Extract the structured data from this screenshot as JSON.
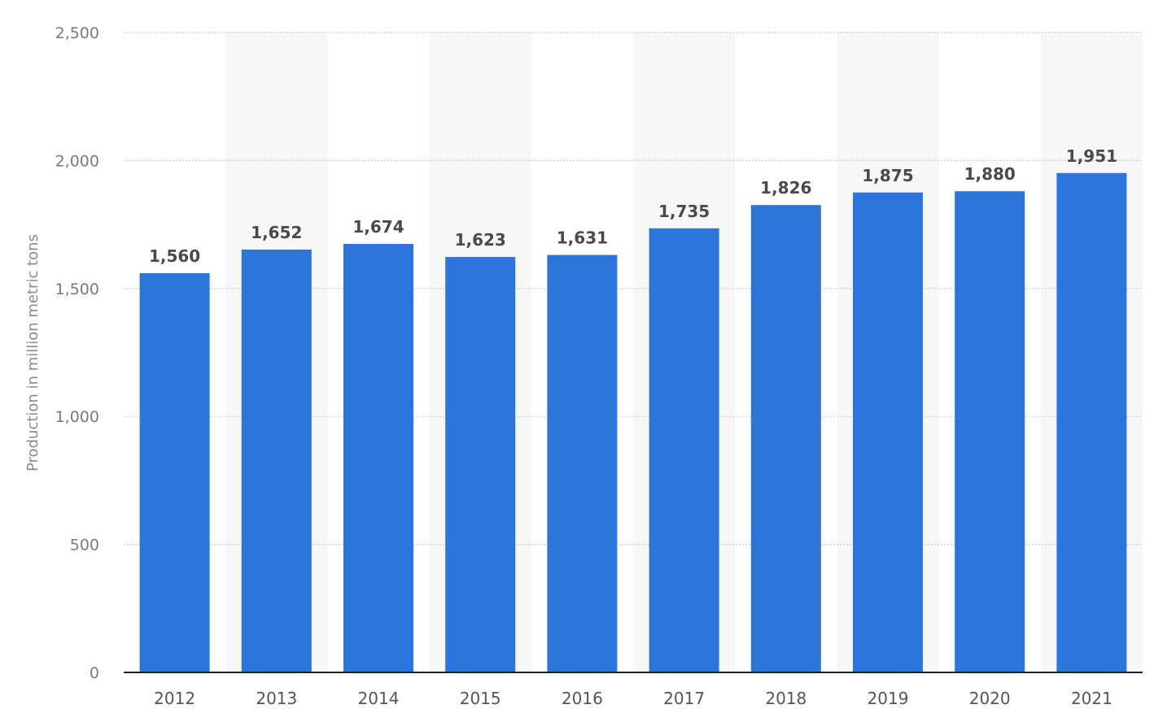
{
  "chart_data": {
    "type": "bar",
    "categories": [
      "2012",
      "2013",
      "2014",
      "2015",
      "2016",
      "2017",
      "2018",
      "2019",
      "2020",
      "2021"
    ],
    "values": [
      1560,
      1652,
      1674,
      1623,
      1631,
      1735,
      1826,
      1875,
      1880,
      1951
    ],
    "data_labels": [
      "1,560",
      "1,652",
      "1,674",
      "1,623",
      "1,631",
      "1,735",
      "1,826",
      "1,875",
      "1,880",
      "1,951"
    ],
    "title": "",
    "xlabel": "",
    "ylabel": "Production in million metric tons",
    "ylim": [
      0,
      2500
    ],
    "yticks": [
      0,
      500,
      1000,
      1500,
      2000,
      2500
    ],
    "ytick_labels": [
      "0",
      "500",
      "1,000",
      "1,500",
      "2,000",
      "2,500"
    ],
    "grid": true,
    "alternating_column_bands": true,
    "legend": "none"
  },
  "colors": {
    "bar": "#2b75dd",
    "band": "#f7f7f7",
    "grid": "#c8c8c8",
    "baseline": "#222222"
  }
}
